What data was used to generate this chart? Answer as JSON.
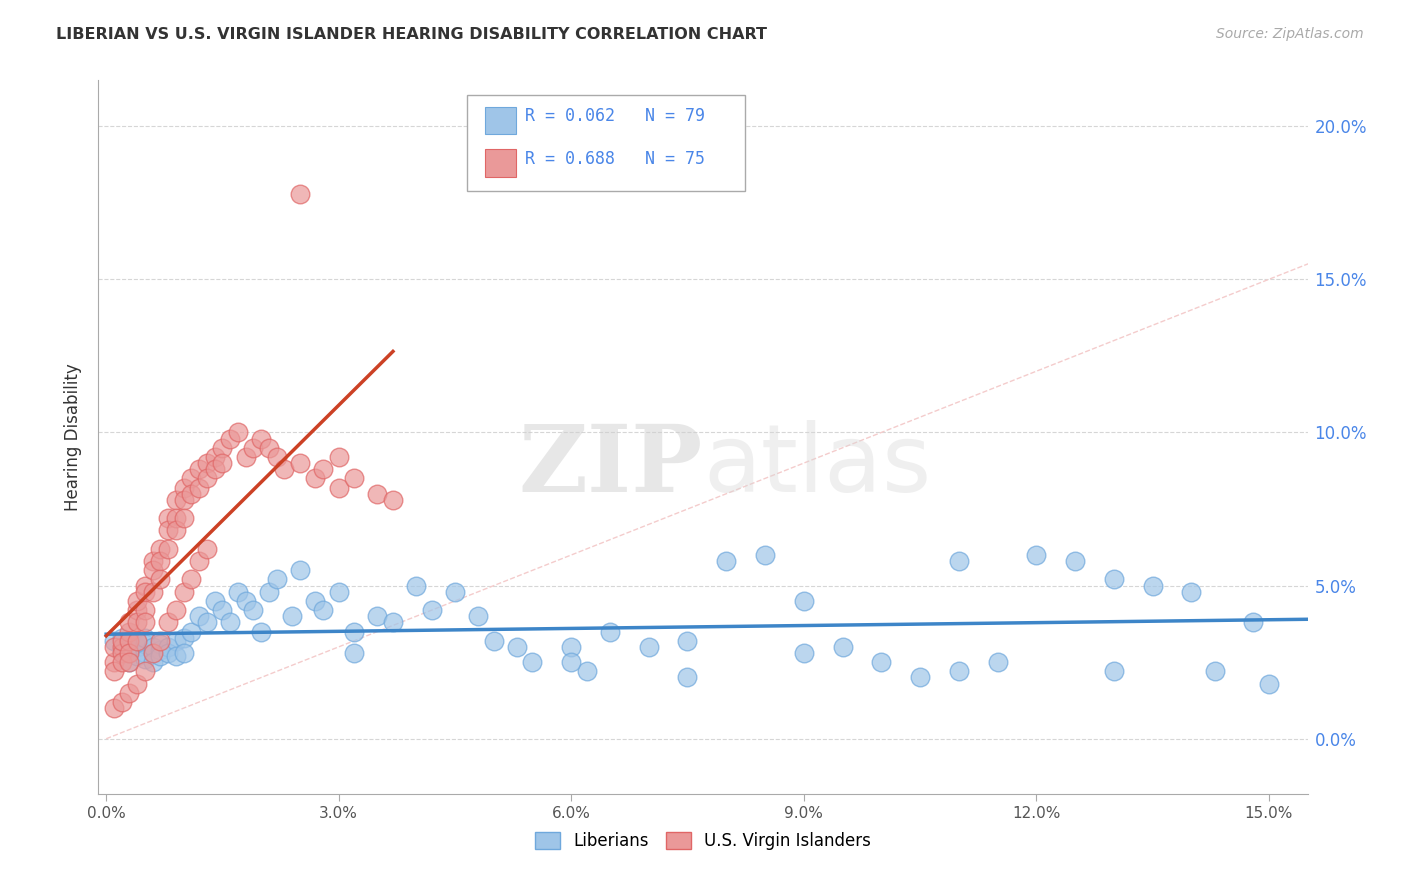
{
  "title": "LIBERIAN VS U.S. VIRGIN ISLANDER HEARING DISABILITY CORRELATION CHART",
  "source": "Source: ZipAtlas.com",
  "ylabel": "Hearing Disability",
  "watermark_zip": "ZIP",
  "watermark_atlas": "atlas",
  "xlim": [
    -0.001,
    0.155
  ],
  "ylim": [
    -0.018,
    0.215
  ],
  "xticks": [
    0.0,
    0.03,
    0.06,
    0.09,
    0.12,
    0.15
  ],
  "yticks": [
    0.0,
    0.05,
    0.1,
    0.15,
    0.2
  ],
  "blue_R": 0.062,
  "blue_N": 79,
  "pink_R": 0.688,
  "pink_N": 75,
  "blue_color": "#9fc5e8",
  "pink_color": "#ea9999",
  "blue_edge_color": "#6fa8dc",
  "pink_edge_color": "#e06666",
  "blue_line_color": "#3d85c8",
  "pink_line_color": "#cc4125",
  "diagonal_color": "#f4cccc",
  "grid_color": "#cccccc",
  "legend_blue_text": "#4a86e8",
  "legend_pink_text": "#cc4125",
  "right_axis_color": "#4a86e8",
  "blue_x": [
    0.001,
    0.002,
    0.002,
    0.003,
    0.003,
    0.003,
    0.004,
    0.004,
    0.004,
    0.005,
    0.005,
    0.005,
    0.005,
    0.006,
    0.006,
    0.006,
    0.007,
    0.007,
    0.007,
    0.008,
    0.008,
    0.009,
    0.009,
    0.01,
    0.01,
    0.011,
    0.012,
    0.013,
    0.014,
    0.015,
    0.016,
    0.017,
    0.018,
    0.019,
    0.02,
    0.021,
    0.022,
    0.024,
    0.025,
    0.027,
    0.028,
    0.03,
    0.032,
    0.035,
    0.037,
    0.04,
    0.042,
    0.045,
    0.048,
    0.05,
    0.053,
    0.055,
    0.06,
    0.062,
    0.065,
    0.07,
    0.075,
    0.08,
    0.085,
    0.09,
    0.095,
    0.1,
    0.105,
    0.11,
    0.115,
    0.12,
    0.125,
    0.13,
    0.135,
    0.14,
    0.143,
    0.148,
    0.15,
    0.032,
    0.06,
    0.075,
    0.09,
    0.11,
    0.13
  ],
  "blue_y": [
    0.032,
    0.028,
    0.033,
    0.025,
    0.03,
    0.028,
    0.032,
    0.027,
    0.03,
    0.028,
    0.031,
    0.026,
    0.033,
    0.028,
    0.03,
    0.025,
    0.029,
    0.031,
    0.027,
    0.03,
    0.028,
    0.032,
    0.027,
    0.033,
    0.028,
    0.035,
    0.04,
    0.038,
    0.045,
    0.042,
    0.038,
    0.048,
    0.045,
    0.042,
    0.035,
    0.048,
    0.052,
    0.04,
    0.055,
    0.045,
    0.042,
    0.048,
    0.035,
    0.04,
    0.038,
    0.05,
    0.042,
    0.048,
    0.04,
    0.032,
    0.03,
    0.025,
    0.03,
    0.022,
    0.035,
    0.03,
    0.032,
    0.058,
    0.06,
    0.028,
    0.03,
    0.025,
    0.02,
    0.022,
    0.025,
    0.06,
    0.058,
    0.052,
    0.05,
    0.048,
    0.022,
    0.038,
    0.018,
    0.028,
    0.025,
    0.02,
    0.045,
    0.058,
    0.022
  ],
  "pink_x": [
    0.001,
    0.001,
    0.001,
    0.002,
    0.002,
    0.002,
    0.002,
    0.003,
    0.003,
    0.003,
    0.003,
    0.003,
    0.004,
    0.004,
    0.004,
    0.004,
    0.005,
    0.005,
    0.005,
    0.005,
    0.006,
    0.006,
    0.006,
    0.007,
    0.007,
    0.007,
    0.008,
    0.008,
    0.008,
    0.009,
    0.009,
    0.009,
    0.01,
    0.01,
    0.01,
    0.011,
    0.011,
    0.012,
    0.012,
    0.013,
    0.013,
    0.014,
    0.014,
    0.015,
    0.015,
    0.016,
    0.017,
    0.018,
    0.019,
    0.02,
    0.021,
    0.022,
    0.023,
    0.025,
    0.027,
    0.028,
    0.03,
    0.032,
    0.035,
    0.037,
    0.001,
    0.002,
    0.003,
    0.004,
    0.005,
    0.006,
    0.007,
    0.008,
    0.009,
    0.01,
    0.011,
    0.012,
    0.013,
    0.025,
    0.03
  ],
  "pink_y": [
    0.025,
    0.03,
    0.022,
    0.03,
    0.028,
    0.025,
    0.032,
    0.035,
    0.038,
    0.032,
    0.028,
    0.025,
    0.042,
    0.045,
    0.038,
    0.032,
    0.05,
    0.048,
    0.042,
    0.038,
    0.058,
    0.055,
    0.048,
    0.062,
    0.058,
    0.052,
    0.072,
    0.068,
    0.062,
    0.078,
    0.072,
    0.068,
    0.082,
    0.078,
    0.072,
    0.085,
    0.08,
    0.088,
    0.082,
    0.09,
    0.085,
    0.092,
    0.088,
    0.095,
    0.09,
    0.098,
    0.1,
    0.092,
    0.095,
    0.098,
    0.095,
    0.092,
    0.088,
    0.09,
    0.085,
    0.088,
    0.082,
    0.085,
    0.08,
    0.078,
    0.01,
    0.012,
    0.015,
    0.018,
    0.022,
    0.028,
    0.032,
    0.038,
    0.042,
    0.048,
    0.052,
    0.058,
    0.062,
    0.178,
    0.092
  ]
}
